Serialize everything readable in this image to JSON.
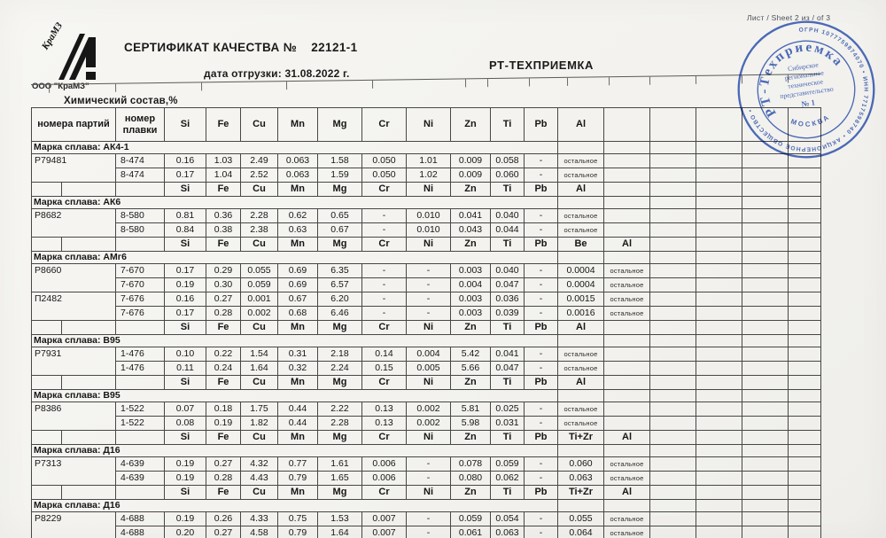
{
  "page": {
    "sheet_label": "Лист / Sheet  2 из / of  3",
    "logo_script": "КраМЗ",
    "company": "ООО \"КраМЗ\"",
    "title": "СЕРТИФИКАТ КАЧЕСТВА №",
    "cert_number": "22121-1",
    "ship_line": "дата отгрузки:  31.08.2022 г.",
    "acceptance": "РТ-ТЕХПРИЕМКА"
  },
  "table": {
    "title": "Химический состав,%",
    "batch_header": "номера партий",
    "melt_header_lines": [
      "номер",
      "плавки"
    ],
    "elements": [
      "Si",
      "Fe",
      "Cu",
      "Mn",
      "Mg",
      "Cr",
      "Ni",
      "Zn",
      "Ti",
      "Pb"
    ],
    "rest_word": "остальное",
    "sections": [
      {
        "alloy": "АК4-1",
        "band": "Марка сплава: АК4-1",
        "extra_headers": [
          "Al"
        ],
        "rows": [
          {
            "batch": "Р79481",
            "melt": "8-474",
            "v": [
              "0.16",
              "1.03",
              "2.49",
              "0.063",
              "1.58",
              "0.050",
              "1.01",
              "0.009",
              "0.058",
              "-"
            ],
            "extra": [
              "остальное"
            ]
          },
          {
            "batch": null,
            "melt": "8-474",
            "v": [
              "0.17",
              "1.04",
              "2.52",
              "0.063",
              "1.59",
              "0.050",
              "1.02",
              "0.009",
              "0.060",
              "-"
            ],
            "extra": [
              "остальное"
            ]
          }
        ]
      },
      {
        "alloy": "АК6",
        "band": "Марка сплава: АК6",
        "extra_headers": [
          "Al"
        ],
        "rows": [
          {
            "batch": "Р8682",
            "melt": "8-580",
            "v": [
              "0.81",
              "0.36",
              "2.28",
              "0.62",
              "0.65",
              "-",
              "0.010",
              "0.041",
              "0.040",
              "-"
            ],
            "extra": [
              "остальное"
            ]
          },
          {
            "batch": null,
            "melt": "8-580",
            "v": [
              "0.84",
              "0.38",
              "2.38",
              "0.63",
              "0.67",
              "-",
              "0.010",
              "0.043",
              "0.044",
              "-"
            ],
            "extra": [
              "остальное"
            ]
          }
        ]
      },
      {
        "alloy": "АМг6",
        "band": "Марка сплава: АМг6",
        "extra_headers": [
          "Be",
          "Al"
        ],
        "rows": [
          {
            "batch": "Р8660",
            "melt": "7-670",
            "v": [
              "0.17",
              "0.29",
              "0.055",
              "0.69",
              "6.35",
              "-",
              "-",
              "0.003",
              "0.040",
              "-"
            ],
            "extra": [
              "0.0004",
              "остальное"
            ]
          },
          {
            "batch": null,
            "melt": "7-670",
            "v": [
              "0.19",
              "0.30",
              "0.059",
              "0.69",
              "6.57",
              "-",
              "-",
              "0.004",
              "0.047",
              "-"
            ],
            "extra": [
              "0.0004",
              "остальное"
            ]
          },
          {
            "batch": "П2482",
            "melt": "7-676",
            "v": [
              "0.16",
              "0.27",
              "0.001",
              "0.67",
              "6.20",
              "-",
              "-",
              "0.003",
              "0.036",
              "-"
            ],
            "extra": [
              "0.0015",
              "остальное"
            ]
          },
          {
            "batch": null,
            "melt": "7-676",
            "v": [
              "0.17",
              "0.28",
              "0.002",
              "0.68",
              "6.46",
              "-",
              "-",
              "0.003",
              "0.039",
              "-"
            ],
            "extra": [
              "0.0016",
              "остальное"
            ]
          }
        ]
      },
      {
        "alloy": "В95",
        "band": "Марка сплава: В95",
        "extra_headers": [
          "Al"
        ],
        "rows": [
          {
            "batch": "Р7931",
            "melt": "1-476",
            "v": [
              "0.10",
              "0.22",
              "1.54",
              "0.31",
              "2.18",
              "0.14",
              "0.004",
              "5.42",
              "0.041",
              "-"
            ],
            "extra": [
              "остальное"
            ]
          },
          {
            "batch": null,
            "melt": "1-476",
            "v": [
              "0.11",
              "0.24",
              "1.64",
              "0.32",
              "2.24",
              "0.15",
              "0.005",
              "5.66",
              "0.047",
              "-"
            ],
            "extra": [
              "остальное"
            ]
          }
        ]
      },
      {
        "alloy": "В95",
        "band": "Марка сплава: В95",
        "extra_headers": [
          "Al"
        ],
        "rows": [
          {
            "batch": "Р8386",
            "melt": "1-522",
            "v": [
              "0.07",
              "0.18",
              "1.75",
              "0.44",
              "2.22",
              "0.13",
              "0.002",
              "5.81",
              "0.025",
              "-"
            ],
            "extra": [
              "остальное"
            ]
          },
          {
            "batch": null,
            "melt": "1-522",
            "v": [
              "0.08",
              "0.19",
              "1.82",
              "0.44",
              "2.28",
              "0.13",
              "0.002",
              "5.98",
              "0.031",
              "-"
            ],
            "extra": [
              "остальное"
            ]
          }
        ]
      },
      {
        "alloy": "Д16",
        "band": "Марка сплава: Д16",
        "extra_headers": [
          "Ti+Zr",
          "Al"
        ],
        "rows": [
          {
            "batch": "Р7313",
            "melt": "4-639",
            "v": [
              "0.19",
              "0.27",
              "4.32",
              "0.77",
              "1.61",
              "0.006",
              "-",
              "0.078",
              "0.059",
              "-"
            ],
            "extra": [
              "0.060",
              "остальное"
            ]
          },
          {
            "batch": null,
            "melt": "4-639",
            "v": [
              "0.19",
              "0.28",
              "4.43",
              "0.79",
              "1.65",
              "0.006",
              "-",
              "0.080",
              "0.062",
              "-"
            ],
            "extra": [
              "0.063",
              "остальное"
            ]
          }
        ]
      },
      {
        "alloy": "Д16",
        "band": "Марка сплава: Д16",
        "extra_headers": [
          "Ti+Zr",
          "Al"
        ],
        "rows": [
          {
            "batch": "Р8229",
            "melt": "4-688",
            "v": [
              "0.19",
              "0.26",
              "4.33",
              "0.75",
              "1.53",
              "0.007",
              "-",
              "0.059",
              "0.054",
              "-"
            ],
            "extra": [
              "0.055",
              "остальное"
            ]
          },
          {
            "batch": null,
            "melt": "4-688",
            "v": [
              "0.20",
              "0.27",
              "4.58",
              "0.79",
              "1.64",
              "0.007",
              "-",
              "0.061",
              "0.063",
              "-"
            ],
            "extra": [
              "0.064",
              "остальное"
            ]
          }
        ]
      }
    ]
  },
  "stamp": {
    "ring_text": "ОГРН 1077759874070 • ИНН 7717598740 • АКЦИОНЕРНОЕ ОБЩЕСТВО •",
    "arc_text": "РТ-Техприемка",
    "center_lines": [
      "Сибирское",
      "региональное",
      "техническое",
      "представительство",
      "№ 1"
    ],
    "city": "МОСКВА",
    "color": "#3b5fbe"
  }
}
